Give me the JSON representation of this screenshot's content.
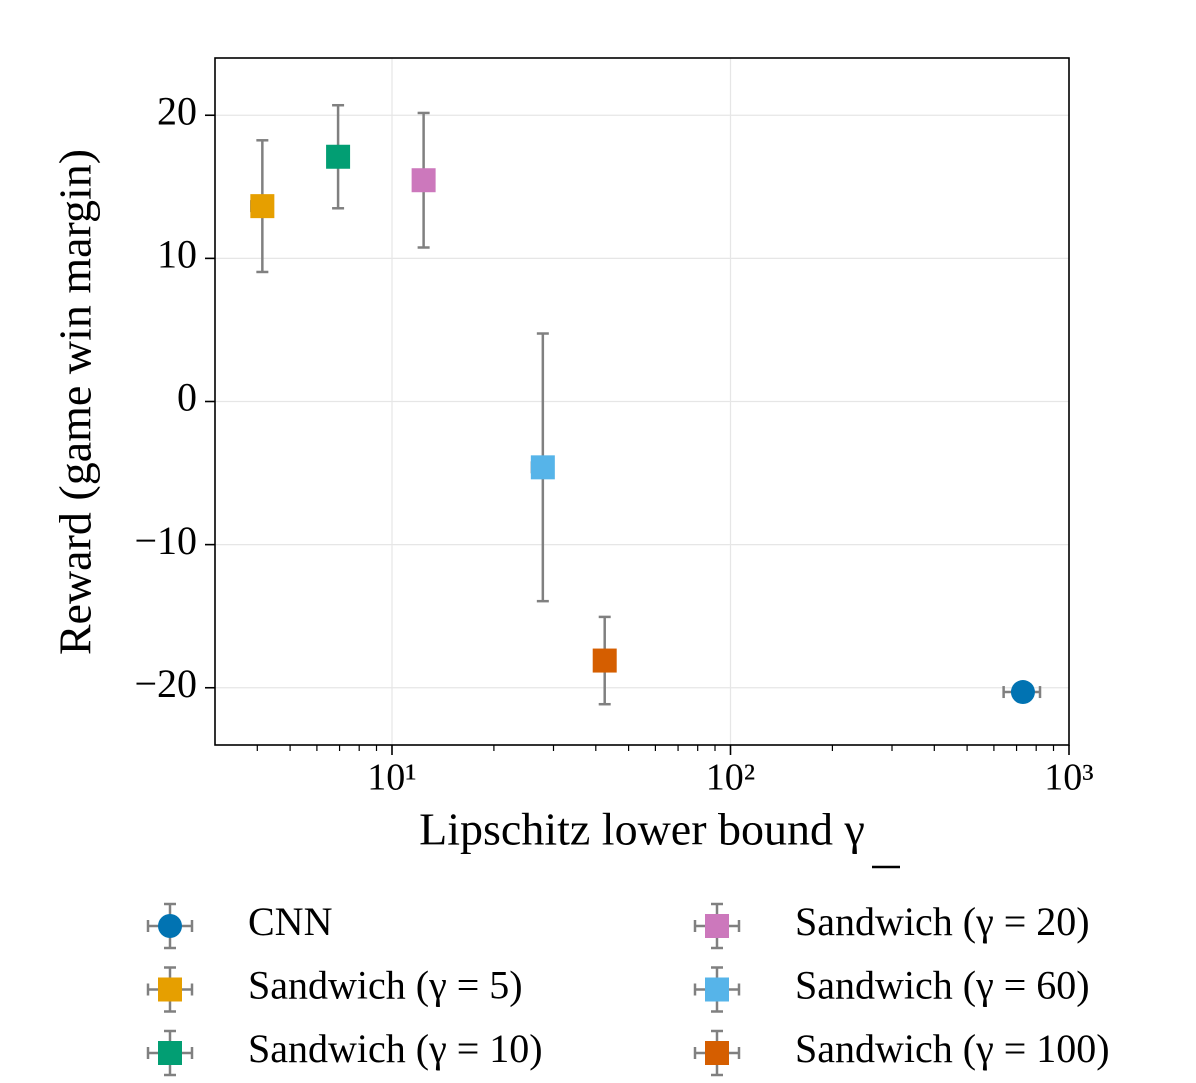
{
  "chart_data": {
    "type": "scatter",
    "x_label": "Lipschitz lower bound γ",
    "y_label": "Reward (game win margin)",
    "xscale": "log",
    "xlim": [
      3,
      1000
    ],
    "ylim": [
      -24,
      24
    ],
    "xticks": [
      {
        "value": 10,
        "label": "10¹"
      },
      {
        "value": 100,
        "label": "10²"
      },
      {
        "value": 1000,
        "label": "10³"
      }
    ],
    "xminorticks": [
      4,
      5,
      6,
      7,
      8,
      9,
      20,
      30,
      40,
      50,
      60,
      70,
      80,
      90,
      200,
      300,
      400,
      500,
      600,
      700,
      800,
      900
    ],
    "yticks": [
      {
        "value": -20,
        "label": "−20"
      },
      {
        "value": -10,
        "label": "−10"
      },
      0,
      10,
      20
    ],
    "grid": true,
    "errorbar_color": "#808080",
    "legend": "bottom",
    "series": [
      {
        "name": "CNN",
        "color": "#0173b2",
        "marker": "circle",
        "x": [
          731
        ],
        "y": [
          -20.3
        ],
        "xerr": [
          90
        ],
        "yerr": [
          0.3
        ]
      },
      {
        "name": "Sandwich (γ = 5)",
        "color": "#e69f00",
        "marker": "square",
        "x": [
          4.14
        ],
        "y": [
          13.65
        ],
        "xerr": [
          0.3
        ],
        "yerr": [
          4.6
        ]
      },
      {
        "name": "Sandwich (γ = 10)",
        "color": "#029e73",
        "marker": "square",
        "x": [
          6.93
        ],
        "y": [
          17.1
        ],
        "xerr": [
          0.2
        ],
        "yerr": [
          3.6
        ]
      },
      {
        "name": "Sandwich (γ = 20)",
        "color": "#cc78bc",
        "marker": "square",
        "x": [
          12.4
        ],
        "y": [
          15.46
        ],
        "xerr": [
          0.4
        ],
        "yerr": [
          4.7
        ]
      },
      {
        "name": "Sandwich (γ = 60)",
        "color": "#56b4e9",
        "marker": "square",
        "x": [
          27.9
        ],
        "y": [
          -4.6
        ],
        "xerr": [
          2
        ],
        "yerr": [
          9.35
        ]
      },
      {
        "name": "Sandwich (γ = 100)",
        "color": "#d55e00",
        "marker": "square",
        "x": [
          42.5
        ],
        "y": [
          -18.1
        ],
        "xerr": [
          1
        ],
        "yerr": [
          3.05
        ]
      }
    ]
  }
}
